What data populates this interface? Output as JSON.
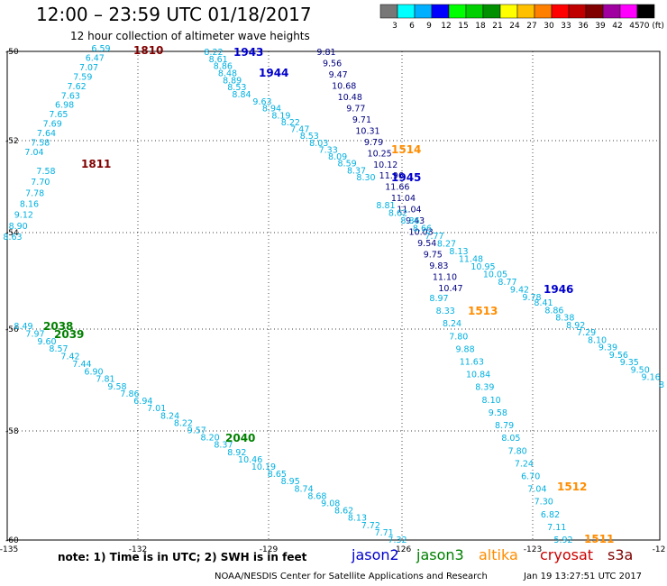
{
  "header": {
    "title": "12:00 – 23:59 UTC 01/18/2017",
    "subtitle": "12 hour collection of altimeter wave heights"
  },
  "colorbar": {
    "labels": [
      "3",
      "6",
      "9",
      "12",
      "15",
      "18",
      "21",
      "24",
      "27",
      "30",
      "33",
      "36",
      "39",
      "42",
      "45",
      "70 (ft)"
    ],
    "colors": [
      "#777777",
      "#00ffff",
      "#00b0ff",
      "#0000ff",
      "#00ff00",
      "#00d000",
      "#009000",
      "#ffff00",
      "#ffc000",
      "#ff8000",
      "#ff0000",
      "#c00000",
      "#800000",
      "#a000a0",
      "#ff00ff",
      "#000000"
    ]
  },
  "axes": {
    "lon_labels": [
      "-135",
      "-132",
      "-129",
      "-126",
      "-123",
      "-12"
    ],
    "lat_labels": [
      "-50",
      "-52",
      "-54",
      "-56",
      "-58",
      "-60"
    ]
  },
  "satellites": {
    "jason2": {
      "name": "jason2",
      "color": "#0000cc"
    },
    "jason3": {
      "name": "jason3",
      "color": "#008000"
    },
    "altika": {
      "name": "altika",
      "color": "#ff8c00"
    },
    "cryosat": {
      "name": "cryosat",
      "color": "#cc0000"
    },
    "s3a": {
      "name": "s3a",
      "color": "#800000"
    }
  },
  "tracks": [
    {
      "id": "1810",
      "sat": "s3a",
      "color": "#800000",
      "label": "1810",
      "values": [
        "6.59",
        "6.47",
        "7.07",
        "7.59",
        "7.62",
        "7.63",
        "6.98",
        "7.65",
        "7.69",
        "7.64",
        "7.58",
        "7.04"
      ]
    },
    {
      "id": "1811",
      "sat": "s3a",
      "color": "#800000",
      "label": "1811",
      "values": [
        "7.58",
        "7.70",
        "7.78",
        "8.16",
        "9.12",
        "8.90",
        "8.63"
      ]
    },
    {
      "id": "1943",
      "sat": "jason2",
      "color": "#0000cc",
      "label": "1943",
      "values": [
        "8.22",
        "8.61",
        "8.86",
        "8.48",
        "8.89",
        "8.53",
        "8.84"
      ]
    },
    {
      "id": "1944",
      "sat": "jason2",
      "color": "#0000cc",
      "label": "1944",
      "values": [
        "9.63",
        "8.94",
        "8.19",
        "8.22",
        "7.47",
        "8.53",
        "8.03",
        "7.33",
        "8.09",
        "8.59",
        "8.37",
        "8.30"
      ]
    },
    {
      "id": "1944b",
      "sat": "jason2",
      "color": "#000080",
      "label": "",
      "values": [
        "9.81",
        "9.56",
        "9.47",
        "10.68",
        "10.48",
        "9.77",
        "9.71",
        "10.31",
        "9.79",
        "10.25",
        "10.12",
        "11.96",
        "11.66",
        "11.04",
        "11.04",
        "9.43",
        "10.03",
        "9.54",
        "9.75",
        "9.83",
        "11.10",
        "10.47"
      ]
    },
    {
      "id": "1945",
      "sat": "jason2",
      "color": "#0000cc",
      "label": "1945",
      "values": [
        "8.81",
        "8.62",
        "8.86",
        "8.66",
        "7.77",
        "8.27",
        "8.13",
        "11.48",
        "10.95",
        "10.05",
        "8.77",
        "9.42",
        "9.78"
      ]
    },
    {
      "id": "1946",
      "sat": "jason2",
      "color": "#0000cc",
      "label": "1946",
      "values": [
        "8.41",
        "8.86",
        "8.38",
        "8.92",
        "7.29",
        "8.10",
        "9.39",
        "9.56",
        "9.35",
        "9.50",
        "9.16",
        "8"
      ]
    },
    {
      "id": "1513",
      "sat": "altika",
      "color": "#ff8c00",
      "label": "1513",
      "values": [
        "8.97",
        "8.33",
        "8.24",
        "7.80",
        "9.88",
        "11.63",
        "10.84",
        "8.39",
        "8.10",
        "9.58",
        "8.79",
        "8.05",
        "7.80",
        "7.24",
        "6.70",
        "7.04",
        "7.30",
        "6.82",
        "7.11",
        "5.92"
      ]
    },
    {
      "id": "1514",
      "sat": "altika",
      "color": "#ff8c00",
      "label": "1514",
      "values": []
    },
    {
      "id": "1512",
      "sat": "altika",
      "color": "#ff8c00",
      "label": "1512",
      "values": []
    },
    {
      "id": "1511",
      "sat": "altika",
      "color": "#ff8c00",
      "label": "1511",
      "values": []
    },
    {
      "id": "2038",
      "sat": "jason3",
      "color": "#008000",
      "label": "2038",
      "values": [
        "8.49",
        "7.97",
        "9.60",
        "8.57",
        "7.42",
        "7.44",
        "6.90",
        "7.81",
        "9.58"
      ]
    },
    {
      "id": "2039",
      "sat": "jason3",
      "color": "#008000",
      "label": "2039",
      "values": []
    },
    {
      "id": "2040",
      "sat": "jason3",
      "color": "#008000",
      "label": "2040",
      "values": [
        "7.86",
        "6.94",
        "7.01",
        "8.24",
        "8.22",
        "9.57",
        "8.20",
        "8.37",
        "8.92",
        "10.46",
        "10.19",
        "8.65",
        "8.95",
        "8.74",
        "8.68",
        "9.08",
        "8.62",
        "8.13",
        "7.72",
        "7.71",
        "7.32"
      ]
    }
  ],
  "footer": {
    "note": "note: 1) Time is in UTC; 2) SWH is in feet",
    "credit": "NOAA/NESDIS Center for Satellite Applications and Research",
    "timestamp": "Jan 19 13:27:51 UTC 2017"
  }
}
